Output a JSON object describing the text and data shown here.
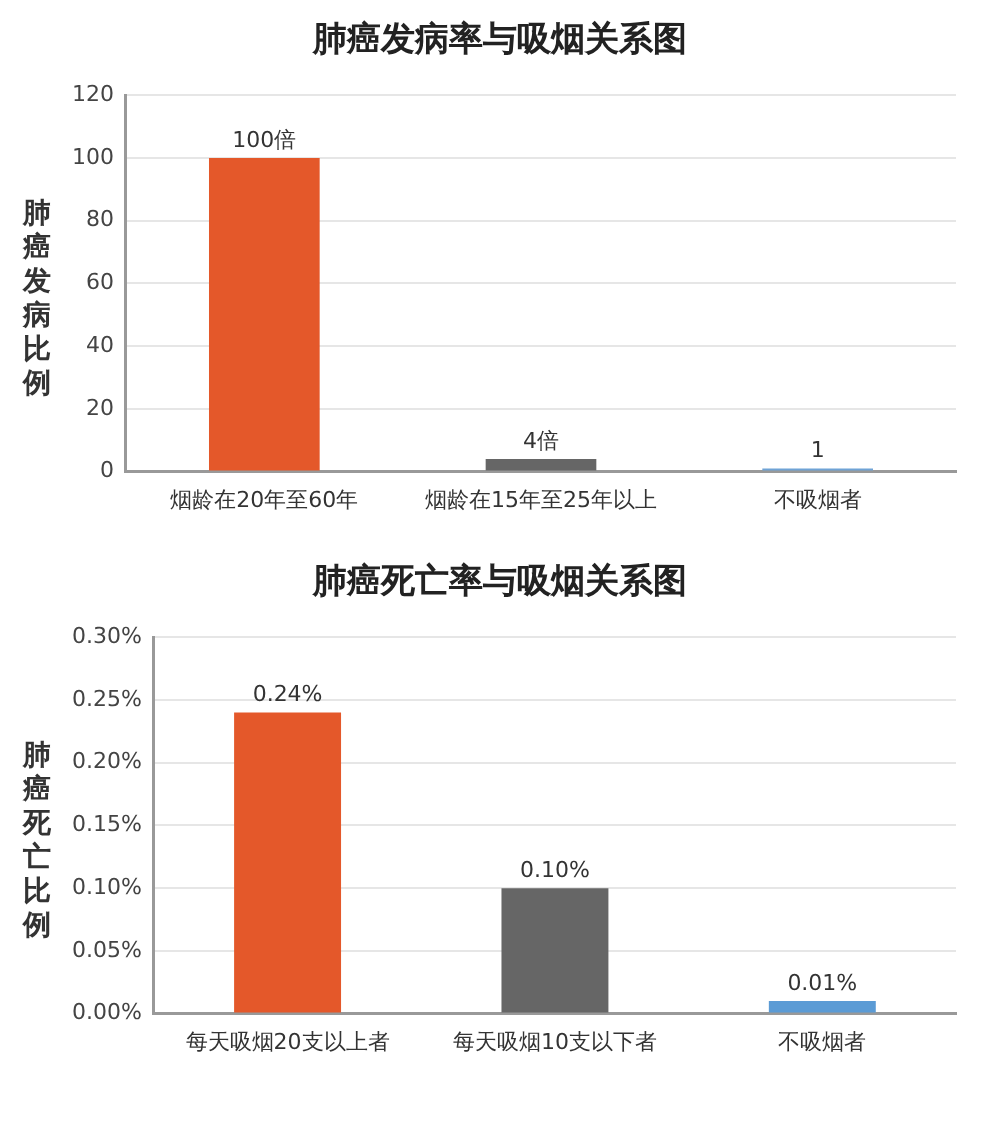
{
  "chart_data": [
    {
      "type": "bar",
      "title": "肺癌发病率与吸烟关系图",
      "ylabel": "肺癌发病比例",
      "categories": [
        "烟龄在20年至60年",
        "烟龄在15年至25年以上",
        "不吸烟者"
      ],
      "values": [
        100,
        4,
        1
      ],
      "value_labels": [
        "100倍",
        "4倍",
        "1"
      ],
      "colors": [
        "#e4582a",
        "#666666",
        "#6fa3d6"
      ],
      "ylim": [
        0,
        120
      ],
      "yticks": [
        0,
        20,
        40,
        60,
        80,
        100,
        120
      ],
      "grid": "y",
      "legend": false
    },
    {
      "type": "bar",
      "title": "肺癌死亡率与吸烟关系图",
      "ylabel": "肺癌死亡比例",
      "categories": [
        "每天吸烟20支以上者",
        "每天吸烟10支以下者",
        "不吸烟者"
      ],
      "values": [
        0.24,
        0.1,
        0.01
      ],
      "value_labels": [
        "0.24%",
        "0.10%",
        "0.01%"
      ],
      "colors": [
        "#e4582a",
        "#666666",
        "#5b9bd5"
      ],
      "ylim": [
        0,
        0.3
      ],
      "yticks": [
        {
          "value": 0,
          "label": "0.00%"
        },
        {
          "value": 0.05,
          "label": "0.05%"
        },
        {
          "value": 0.1,
          "label": "0.10%"
        },
        {
          "value": 0.15,
          "label": "0.15%"
        },
        {
          "value": 0.2,
          "label": "0.20%"
        },
        {
          "value": 0.25,
          "label": "0.25%"
        },
        {
          "value": 0.3,
          "label": "0.30%"
        }
      ],
      "grid": "y",
      "legend": false
    }
  ]
}
